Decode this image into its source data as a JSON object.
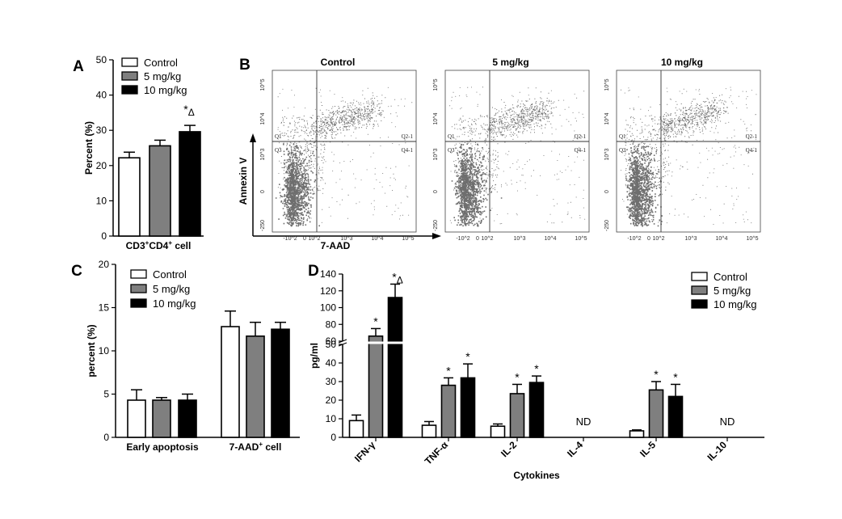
{
  "colors": {
    "control": "#ffffff",
    "dose5": "#7f7f7f",
    "dose10": "#000000",
    "scatter": "#6e6e6e"
  },
  "chart_data": [
    {
      "panel": "A",
      "type": "bar",
      "categories": [
        "CD3+CD4+ cell"
      ],
      "xlabel": "CD3+CD4+ cell",
      "ylabel": "Percent  (%)",
      "ylim": [
        0,
        50
      ],
      "yticks": [
        0,
        10,
        20,
        30,
        40,
        50
      ],
      "series": [
        {
          "name": "Control",
          "values": [
            22.2
          ],
          "errors": [
            1.6
          ],
          "color": "#ffffff"
        },
        {
          "name": "5 mg/kg",
          "values": [
            25.6
          ],
          "errors": [
            1.6
          ],
          "color": "#7f7f7f"
        },
        {
          "name": "10 mg/kg",
          "values": [
            29.6
          ],
          "errors": [
            1.8
          ],
          "color": "#000000"
        }
      ],
      "annotations": [
        {
          "text": "*Δ",
          "series": "10 mg/kg",
          "category": 0
        }
      ],
      "legend": "top-left"
    },
    {
      "panel": "B",
      "type": "scatter",
      "xlabel": "7-AAD",
      "ylabel": "Annexin V",
      "plots": [
        {
          "title": "Control",
          "gates": [
            "Q1",
            "Q2-1",
            "Q3",
            "Q4-1"
          ]
        },
        {
          "title": "5 mg/kg",
          "gates": [
            "Q1",
            "Q2-1",
            "Q3",
            "Q4-1"
          ]
        },
        {
          "title": "10 mg/kg",
          "gates": [
            "Q1",
            "Q2-1",
            "Q3",
            "Q4-1"
          ]
        }
      ],
      "axis_ticks": [
        "-10^2",
        "0",
        "10^2",
        "10^3",
        "10^4",
        "10^5",
        "-250"
      ]
    },
    {
      "panel": "C",
      "type": "bar",
      "categories": [
        "Early apoptosis",
        "7-AAD+ cell"
      ],
      "xlabel": "",
      "ylabel": "percent (%)",
      "ylim": [
        0,
        20
      ],
      "yticks": [
        0,
        5,
        10,
        15,
        20
      ],
      "series": [
        {
          "name": "Control",
          "values": [
            4.3,
            12.8
          ],
          "errors": [
            1.2,
            1.8
          ],
          "color": "#ffffff"
        },
        {
          "name": "5 mg/kg",
          "values": [
            4.3,
            11.7
          ],
          "errors": [
            0.3,
            1.6
          ],
          "color": "#7f7f7f"
        },
        {
          "name": "10 mg/kg",
          "values": [
            4.3,
            12.5
          ],
          "errors": [
            0.7,
            0.8
          ],
          "color": "#000000"
        }
      ],
      "legend": "top-left"
    },
    {
      "panel": "D",
      "type": "bar",
      "categories": [
        "IFN-γ",
        "TNF-α",
        "IL-2",
        "IL-4",
        "IL-5",
        "IL-10"
      ],
      "xlabel": "Cytokines",
      "ylabel": "pg/ml",
      "ylim": [
        0,
        140
      ],
      "yticks": [
        0,
        10,
        20,
        30,
        40,
        50,
        60,
        80,
        100,
        120,
        140
      ],
      "axis_break": [
        50,
        60
      ],
      "series": [
        {
          "name": "Control",
          "values": [
            9,
            6.5,
            6,
            null,
            3.5,
            null
          ],
          "errors": [
            3,
            2,
            1.2,
            null,
            0.5,
            null
          ],
          "color": "#ffffff"
        },
        {
          "name": "5 mg/kg",
          "values": [
            66,
            28,
            23.5,
            null,
            25.5,
            null
          ],
          "errors": [
            9,
            4,
            5,
            null,
            4.5,
            null
          ],
          "color": "#7f7f7f"
        },
        {
          "name": "10 mg/kg",
          "values": [
            112,
            32,
            29.5,
            null,
            22,
            null
          ],
          "errors": [
            16,
            7.5,
            3.5,
            null,
            6.5,
            null
          ],
          "color": "#000000"
        }
      ],
      "not_detected": [
        "IL-4",
        "IL-10"
      ],
      "nd_label": "ND",
      "significance": [
        {
          "category": "IFN-γ",
          "series": "5 mg/kg",
          "text": "*"
        },
        {
          "category": "IFN-γ",
          "series": "10 mg/kg",
          "text": "*Δ"
        },
        {
          "category": "TNF-α",
          "series": "5 mg/kg",
          "text": "*"
        },
        {
          "category": "TNF-α",
          "series": "10 mg/kg",
          "text": "*"
        },
        {
          "category": "IL-2",
          "series": "5 mg/kg",
          "text": "*"
        },
        {
          "category": "IL-2",
          "series": "10 mg/kg",
          "text": "*"
        },
        {
          "category": "IL-5",
          "series": "5 mg/kg",
          "text": "*"
        },
        {
          "category": "IL-5",
          "series": "10 mg/kg",
          "text": "*"
        }
      ],
      "legend": "top-right"
    }
  ]
}
